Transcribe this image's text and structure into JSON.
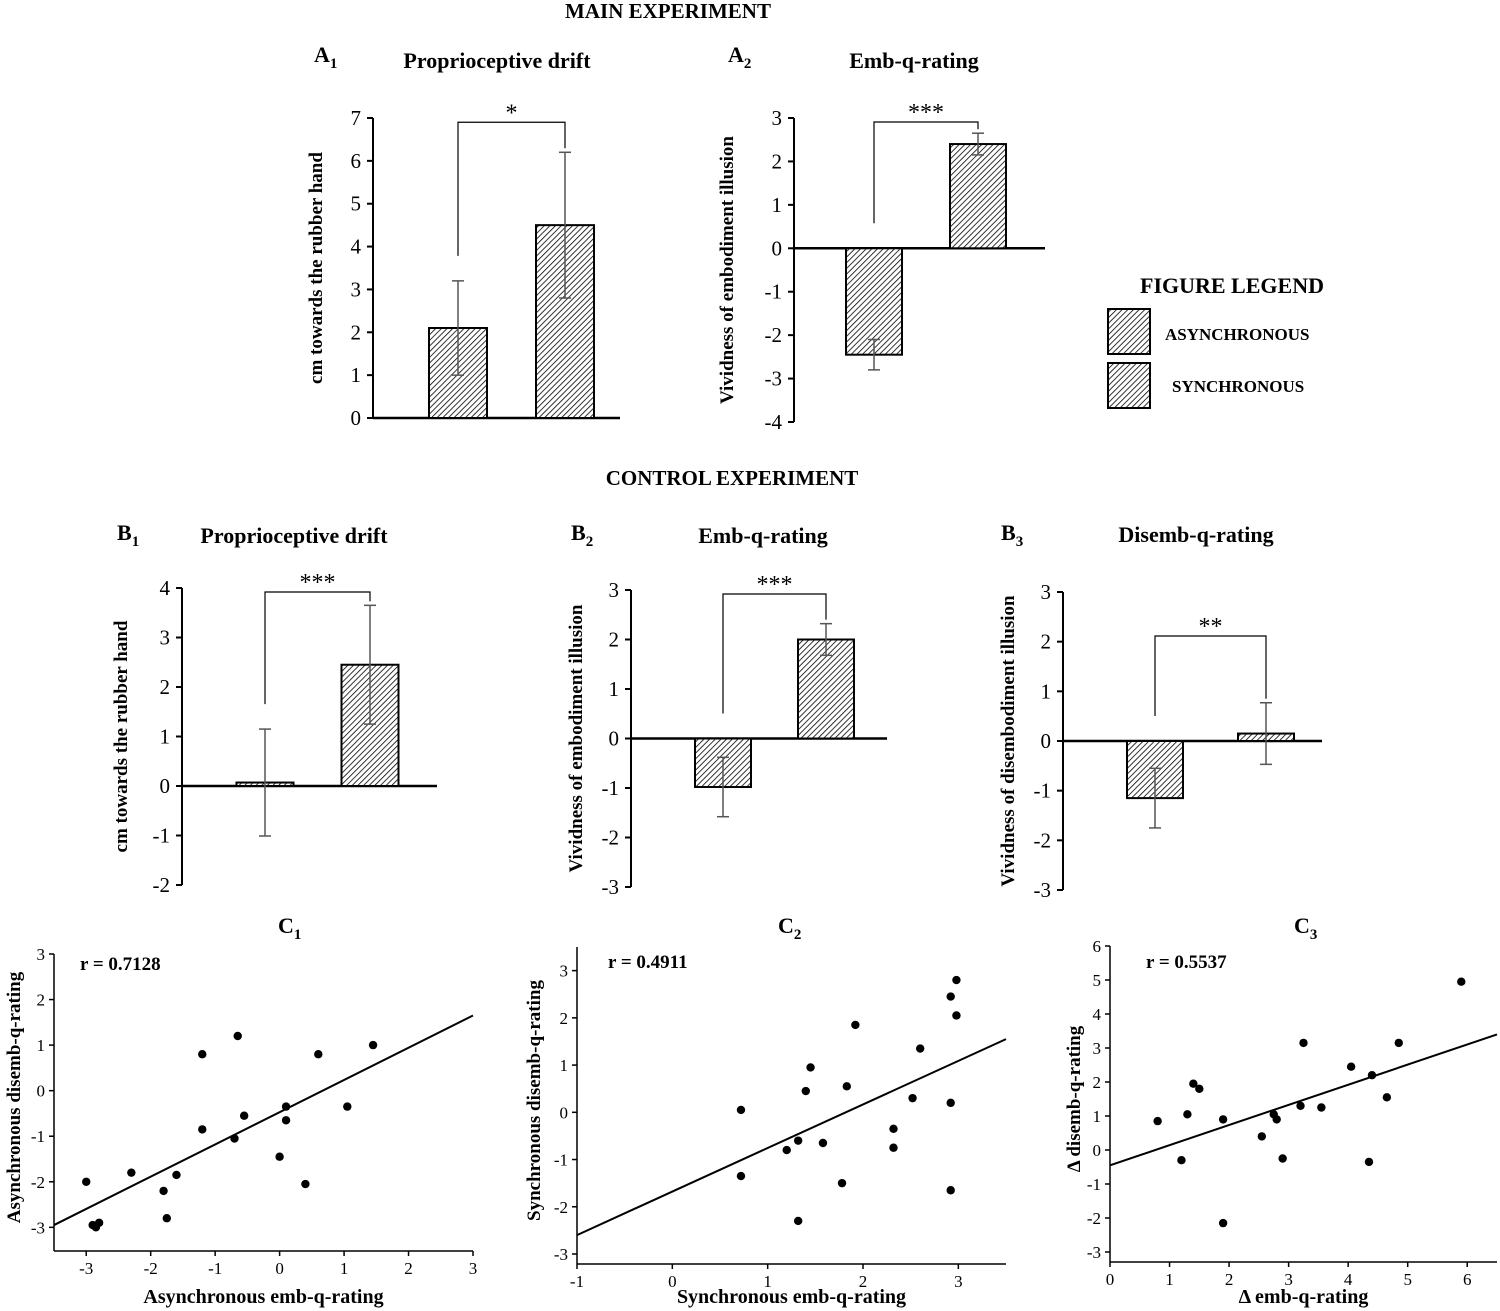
{
  "headers": {
    "main": "MAIN EXPERIMENT",
    "control": "CONTROL EXPERIMENT"
  },
  "legend": {
    "title": "FIGURE LEGEND",
    "items": [
      "ASYNCHRONOUS",
      "SYNCHRONOUS"
    ]
  },
  "colors": {
    "ink": "#000000",
    "hatch_bg": "#ffffff",
    "hatch_line": "#000000",
    "errorbar": "#555555"
  },
  "chart_data": [
    {
      "id": "A1",
      "panel_letter": "A",
      "panel_sub": "1",
      "type": "bar",
      "title": "Proprioceptive drift",
      "ylabel": "cm towards the rubber hand",
      "xlabel": "",
      "ylim": [
        0,
        7
      ],
      "yticks": [
        "0",
        "1",
        "2",
        "3",
        "4",
        "5",
        "6",
        "7"
      ],
      "categories": [
        "ASYNCHRONOUS",
        "SYNCHRONOUS"
      ],
      "values": [
        2.1,
        4.5
      ],
      "errors": [
        1.1,
        1.7
      ],
      "significance": "*"
    },
    {
      "id": "A2",
      "panel_letter": "A",
      "panel_sub": "2",
      "type": "bar",
      "title": "Emb-q-rating",
      "ylabel": "Vividness of embodiment  illusion",
      "xlabel": "",
      "ylim": [
        -4,
        3
      ],
      "yticks": [
        "-4",
        "-3",
        "-2",
        "-1",
        "0",
        "1",
        "2",
        "3"
      ],
      "categories": [
        "ASYNCHRONOUS",
        "SYNCHRONOUS"
      ],
      "values": [
        -2.45,
        2.4
      ],
      "errors": [
        0.35,
        0.25
      ],
      "significance": "***"
    },
    {
      "id": "B1",
      "panel_letter": "B",
      "panel_sub": "1",
      "type": "bar",
      "title": "Proprioceptive drift",
      "ylabel": "cm towards the rubber hand",
      "xlabel": "",
      "ylim": [
        -2,
        4
      ],
      "yticks": [
        "-2",
        "-1",
        "0",
        "1",
        "2",
        "3",
        "4"
      ],
      "categories": [
        "ASYNCHRONOUS",
        "SYNCHRONOUS"
      ],
      "values": [
        0.07,
        2.45
      ],
      "errors": [
        1.08,
        1.2
      ],
      "significance": "***"
    },
    {
      "id": "B2",
      "panel_letter": "B",
      "panel_sub": "2",
      "type": "bar",
      "title": "Emb-q-rating",
      "ylabel": "Vividness of embodiment  illusion",
      "xlabel": "",
      "ylim": [
        -3,
        3
      ],
      "yticks": [
        "-3",
        "-2",
        "-1",
        "0",
        "1",
        "2",
        "3"
      ],
      "categories": [
        "ASYNCHRONOUS",
        "SYNCHRONOUS"
      ],
      "values": [
        -0.98,
        2.0
      ],
      "errors": [
        0.6,
        0.32
      ],
      "significance": "***"
    },
    {
      "id": "B3",
      "panel_letter": "B",
      "panel_sub": "3",
      "type": "bar",
      "title": "Disemb-q-rating",
      "ylabel": "Vividness of disembodiment illusion",
      "xlabel": "",
      "ylim": [
        -3,
        3
      ],
      "yticks": [
        "-3",
        "-2",
        "-1",
        "0",
        "1",
        "2",
        "3"
      ],
      "categories": [
        "ASYNCHRONOUS",
        "SYNCHRONOUS"
      ],
      "values": [
        -1.15,
        0.15
      ],
      "errors": [
        0.6,
        0.62
      ],
      "significance": "**"
    },
    {
      "id": "C1",
      "panel_letter": "C",
      "panel_sub": "1",
      "type": "scatter",
      "title": "",
      "annotation": "r = 0.7128",
      "xlabel": "Asynchronous emb-q-rating",
      "ylabel": "Asynchronous disemb-q-rating",
      "xlim": [
        -3.5,
        3
      ],
      "ylim": [
        -3.3,
        3
      ],
      "xticks": [
        "-3",
        "-2",
        "-1",
        "0",
        "1",
        "2",
        "3"
      ],
      "yticks": [
        "-3",
        "-2",
        "-1",
        "0",
        "1",
        "2",
        "3"
      ],
      "points": [
        [
          -3.0,
          -2.0
        ],
        [
          -2.9,
          -2.95
        ],
        [
          -2.85,
          -3.0
        ],
        [
          -2.8,
          -2.9
        ],
        [
          -2.3,
          -1.8
        ],
        [
          -1.8,
          -2.2
        ],
        [
          -1.75,
          -2.8
        ],
        [
          -1.6,
          -1.85
        ],
        [
          -1.2,
          0.8
        ],
        [
          -1.2,
          -0.85
        ],
        [
          -0.7,
          -1.05
        ],
        [
          -0.65,
          1.2
        ],
        [
          -0.55,
          -0.55
        ],
        [
          0.0,
          -1.45
        ],
        [
          0.1,
          -0.35
        ],
        [
          0.1,
          -0.65
        ],
        [
          0.4,
          -2.05
        ],
        [
          0.6,
          0.8
        ],
        [
          1.05,
          -0.35
        ],
        [
          1.45,
          1.0
        ]
      ],
      "fit": [
        [
          -3.5,
          -2.95
        ],
        [
          3.0,
          1.65
        ]
      ]
    },
    {
      "id": "C2",
      "panel_letter": "C",
      "panel_sub": "2",
      "type": "scatter",
      "title": "",
      "annotation": "r = 0.4911",
      "xlabel": "Synchronous emb-q-rating",
      "ylabel": "Synchronous disemb-q-rating",
      "xlim": [
        -1,
        3.5
      ],
      "ylim": [
        -3,
        3.5
      ],
      "xticks": [
        "-1",
        "0",
        "1",
        "2",
        "3"
      ],
      "yticks": [
        "-3",
        "-2",
        "-1",
        "0",
        "1",
        "2",
        "3"
      ],
      "points": [
        [
          0.72,
          0.05
        ],
        [
          0.72,
          -1.35
        ],
        [
          1.2,
          -0.8
        ],
        [
          1.32,
          -0.6
        ],
        [
          1.32,
          -2.3
        ],
        [
          1.4,
          0.45
        ],
        [
          1.45,
          0.95
        ],
        [
          1.58,
          -0.65
        ],
        [
          1.78,
          -1.5
        ],
        [
          1.83,
          0.55
        ],
        [
          1.92,
          1.85
        ],
        [
          2.32,
          -0.35
        ],
        [
          2.32,
          -0.75
        ],
        [
          2.52,
          0.3
        ],
        [
          2.6,
          1.35
        ],
        [
          2.92,
          2.45
        ],
        [
          2.92,
          0.2
        ],
        [
          2.92,
          -1.65
        ],
        [
          2.98,
          2.05
        ],
        [
          2.98,
          2.8
        ]
      ],
      "fit": [
        [
          -1.0,
          -2.6
        ],
        [
          3.5,
          1.55
        ]
      ]
    },
    {
      "id": "C3",
      "panel_letter": "C",
      "panel_sub": "3",
      "type": "scatter",
      "title": "",
      "annotation": "r = 0.5537",
      "xlabel": "Δ emb-q-rating",
      "ylabel": "Δ disemb-q-rating",
      "xlim": [
        0,
        6.5
      ],
      "ylim": [
        -3,
        6
      ],
      "xticks": [
        "0",
        "1",
        "2",
        "3",
        "4",
        "5",
        "6"
      ],
      "yticks": [
        "-3",
        "-2",
        "-1",
        "0",
        "1",
        "2",
        "3",
        "4",
        "5",
        "6"
      ],
      "points": [
        [
          0.8,
          0.85
        ],
        [
          1.2,
          -0.3
        ],
        [
          1.3,
          1.05
        ],
        [
          1.4,
          1.95
        ],
        [
          1.5,
          1.8
        ],
        [
          1.9,
          0.9
        ],
        [
          1.9,
          -2.15
        ],
        [
          2.55,
          0.4
        ],
        [
          2.75,
          1.05
        ],
        [
          2.8,
          0.9
        ],
        [
          2.9,
          -0.25
        ],
        [
          3.2,
          1.3
        ],
        [
          3.25,
          3.15
        ],
        [
          3.55,
          1.25
        ],
        [
          4.05,
          2.45
        ],
        [
          4.35,
          -0.35
        ],
        [
          4.4,
          2.2
        ],
        [
          4.65,
          1.55
        ],
        [
          4.85,
          3.15
        ],
        [
          5.9,
          4.95
        ]
      ],
      "fit": [
        [
          0.0,
          -0.45
        ],
        [
          6.5,
          3.4
        ]
      ]
    }
  ]
}
